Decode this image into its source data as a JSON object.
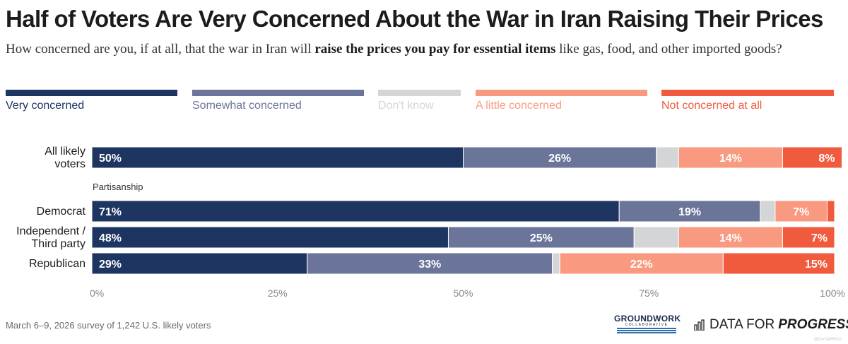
{
  "header": {
    "title": "Half of Voters Are Very Concerned About the War in Iran Raising Their Prices",
    "subtitle_pre": "How concerned are you, if at all, that the war in Iran will ",
    "subtitle_bold": "raise the prices you pay for essential items",
    "subtitle_post": " like gas, food, and other imported goods?"
  },
  "legend": [
    {
      "label": "Very concerned",
      "color": "#1e3461"
    },
    {
      "label": "Somewhat concerned",
      "color": "#6b7599"
    },
    {
      "label": "Don't know",
      "color": "#d4d5d7"
    },
    {
      "label": "A little concerned",
      "color": "#f99a80"
    },
    {
      "label": "Not concerned at all",
      "color": "#f05b3e"
    }
  ],
  "chart_data": {
    "type": "bar",
    "orientation": "horizontal",
    "stacked": true,
    "categories": [
      "All likely voters",
      "Democrat",
      "Independent / Third party",
      "Republican"
    ],
    "group_label": "Partisanship",
    "series": [
      {
        "name": "Very concerned",
        "values": [
          50,
          71,
          48,
          29
        ],
        "labels": [
          "50%",
          "71%",
          "48%",
          "29%"
        ]
      },
      {
        "name": "Somewhat concerned",
        "values": [
          26,
          19,
          25,
          33
        ],
        "labels": [
          "26%",
          "19%",
          "25%",
          "33%"
        ]
      },
      {
        "name": "Don't know",
        "values": [
          3,
          2,
          6,
          1
        ],
        "labels": [
          "",
          "",
          "",
          ""
        ]
      },
      {
        "name": "A little concerned",
        "values": [
          14,
          7,
          14,
          22
        ],
        "labels": [
          "14%",
          "7%",
          "14%",
          "22%"
        ]
      },
      {
        "name": "Not concerned at all",
        "values": [
          8,
          1,
          7,
          15
        ],
        "labels": [
          "8%",
          "",
          "7%",
          "15%"
        ]
      }
    ],
    "xlim": [
      0,
      100
    ],
    "xticks": [
      "0%",
      "25%",
      "50%",
      "75%",
      "100%"
    ],
    "grid": false,
    "legend_position": "top"
  },
  "footer": {
    "note": "March 6–9, 2026 survey of 1,242 U.S. likely voters",
    "groundwork_name": "GROUNDWORK",
    "groundwork_sub": "COLLABORATIVE",
    "dfp_pre": "DATA FOR",
    "dfp_bold": "PROGRESS",
    "watermark": "@DATAPROG"
  }
}
